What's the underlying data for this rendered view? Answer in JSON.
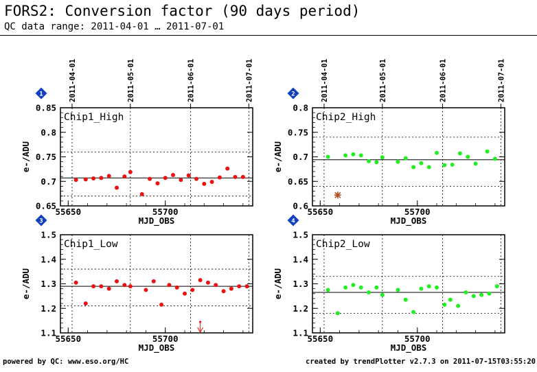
{
  "page": {
    "title": "FORS2: Conversion factor (90 days period)",
    "subtitle": "QC data range: 2011-04-01 … 2011-07-01",
    "footer_left": "powered by QC: www.eso.org/HC",
    "footer_right": "created by trendPlotter v2.7.3 on 2011-07-15T03:55:20"
  },
  "colors": {
    "red": "#ee1111",
    "green": "#22ee22",
    "marker": "#1040c0",
    "star": "#b05020"
  },
  "chart_data": [
    {
      "type": "scatter",
      "panel_number": "1",
      "name": "Chip1_High",
      "xlabel": "MJD_OBS",
      "ylabel": "e-/ADU",
      "xlim": [
        55646,
        55745
      ],
      "ylim": [
        0.65,
        0.85
      ],
      "yticks": [
        "0.65",
        "0.7",
        "0.75",
        "0.8",
        "0.85"
      ],
      "xticks": [
        "55650",
        "55700"
      ],
      "date_axis": {
        "dates": [
          "2011-04-01",
          "2011-05-01",
          "2011-06-01",
          "2011-07-01"
        ],
        "mjd": [
          55652,
          55682,
          55713,
          55743
        ]
      },
      "color": "red",
      "mean": 0.707,
      "limits": [
        0.67,
        0.76
      ],
      "series": [
        {
          "x": [
            55654,
            55659,
            55663,
            55667,
            55671,
            55675,
            55679,
            55682,
            55688,
            55692,
            55696,
            55700,
            55704,
            55708,
            55712,
            55716,
            55720,
            55724,
            55728,
            55732,
            55736,
            55740
          ],
          "y": [
            0.703,
            0.704,
            0.706,
            0.707,
            0.711,
            0.687,
            0.71,
            0.719,
            0.674,
            0.705,
            0.696,
            0.707,
            0.713,
            0.703,
            0.712,
            0.705,
            0.695,
            0.699,
            0.708,
            0.726,
            0.709,
            0.709
          ]
        }
      ],
      "outliers": []
    },
    {
      "type": "scatter",
      "panel_number": "2",
      "name": "Chip2_High",
      "xlabel": "MJD_OBS",
      "ylabel": "e-/ADU",
      "xlim": [
        55646,
        55745
      ],
      "ylim": [
        0.6,
        0.8
      ],
      "yticks": [
        "0.6",
        "0.65",
        "0.7",
        "0.75",
        "0.8"
      ],
      "xticks": [
        "55650",
        "55700"
      ],
      "date_axis": {
        "dates": [
          "2011-04-01",
          "2011-05-01",
          "2011-06-01",
          "2011-07-01"
        ],
        "mjd": [
          55652,
          55682,
          55713,
          55743
        ]
      },
      "color": "green",
      "mean": 0.694,
      "limits": [
        0.64,
        0.74
      ],
      "series": [
        {
          "x": [
            55654,
            55663,
            55667,
            55671,
            55675,
            55679,
            55682,
            55690,
            55694,
            55698,
            55702,
            55706,
            55710,
            55714,
            55718,
            55722,
            55726,
            55730,
            55736,
            55740
          ],
          "y": [
            0.7,
            0.703,
            0.705,
            0.703,
            0.691,
            0.689,
            0.699,
            0.69,
            0.697,
            0.679,
            0.687,
            0.679,
            0.708,
            0.683,
            0.684,
            0.707,
            0.7,
            0.686,
            0.711,
            0.696
          ]
        }
      ],
      "outliers": [
        {
          "x": 55659,
          "y": 0.622,
          "kind": "star"
        }
      ]
    },
    {
      "type": "scatter",
      "panel_number": "3",
      "name": "Chip1_Low",
      "xlabel": "MJD_OBS",
      "ylabel": "e-/ADU",
      "xlim": [
        55646,
        55745
      ],
      "ylim": [
        1.1,
        1.5
      ],
      "yticks": [
        "1.1",
        "1.2",
        "1.3",
        "1.4",
        "1.5"
      ],
      "xticks": [
        "55650",
        "55700"
      ],
      "color": "red",
      "mean": 1.29,
      "limits": [
        1.21,
        1.36
      ],
      "series": [
        {
          "x": [
            55654,
            55659,
            55663,
            55667,
            55671,
            55675,
            55679,
            55682,
            55690,
            55694,
            55698,
            55702,
            55706,
            55710,
            55714,
            55718,
            55722,
            55726,
            55730,
            55734,
            55738,
            55742
          ],
          "y": [
            1.305,
            1.22,
            1.29,
            1.29,
            1.28,
            1.31,
            1.295,
            1.29,
            1.275,
            1.31,
            1.215,
            1.295,
            1.285,
            1.26,
            1.275,
            1.315,
            1.305,
            1.295,
            1.27,
            1.28,
            1.29,
            1.29
          ]
        }
      ],
      "outliers": [
        {
          "x": 55718,
          "y": 1.145,
          "kind": "arrow-down"
        }
      ]
    },
    {
      "type": "scatter",
      "panel_number": "4",
      "name": "Chip2_Low",
      "xlabel": "MJD_OBS",
      "ylabel": "e-/ADU",
      "xlim": [
        55646,
        55745
      ],
      "ylim": [
        1.1,
        1.5
      ],
      "yticks": [
        "1.1",
        "1.2",
        "1.3",
        "1.4",
        "1.5"
      ],
      "xticks": [
        "55650",
        "55700"
      ],
      "color": "green",
      "mean": 1.265,
      "limits": [
        1.18,
        1.33
      ],
      "series": [
        {
          "x": [
            55654,
            55659,
            55663,
            55667,
            55671,
            55675,
            55679,
            55682,
            55690,
            55694,
            55698,
            55702,
            55706,
            55710,
            55714,
            55717,
            55721,
            55725,
            55729,
            55733,
            55737,
            55741
          ],
          "y": [
            1.275,
            1.18,
            1.285,
            1.295,
            1.285,
            1.265,
            1.285,
            1.255,
            1.275,
            1.235,
            1.185,
            1.28,
            1.29,
            1.285,
            1.215,
            1.235,
            1.21,
            1.265,
            1.25,
            1.255,
            1.26,
            1.29
          ]
        }
      ],
      "outliers": []
    }
  ]
}
